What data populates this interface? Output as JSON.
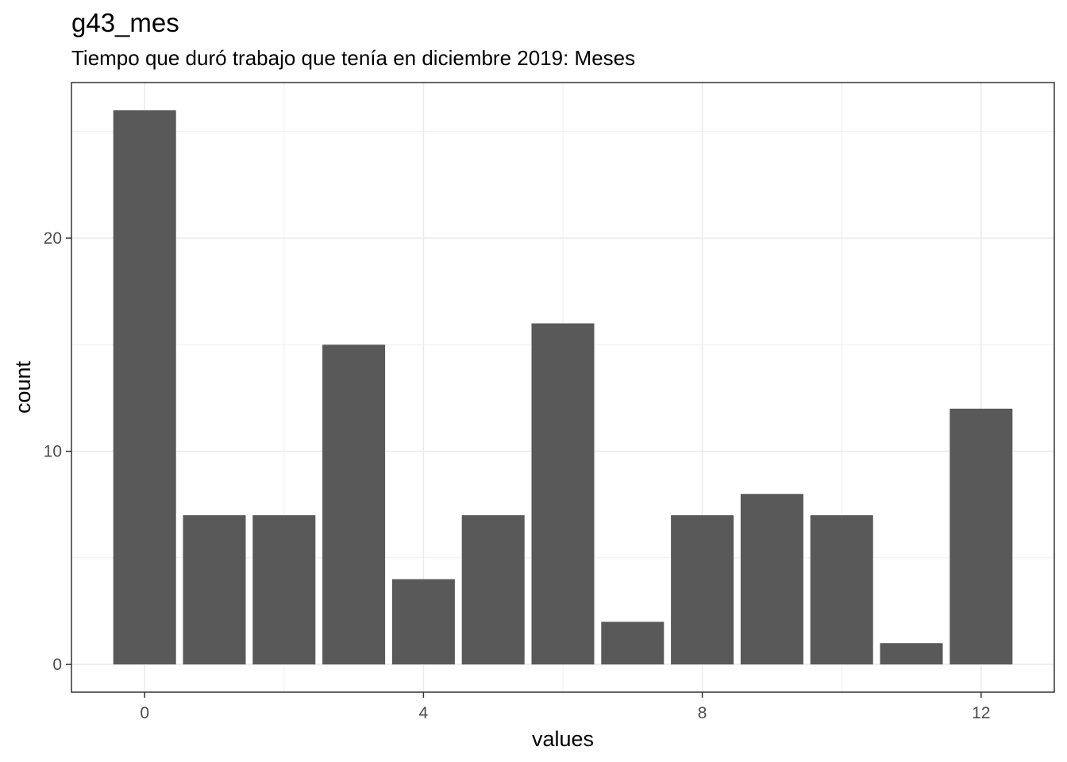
{
  "chart_data": {
    "type": "bar",
    "title": "g43_mes",
    "subtitle": "Tiempo que duró trabajo que tenía en diciembre 2019: Meses",
    "xlabel": "values",
    "ylabel": "count",
    "x": [
      0,
      1,
      2,
      3,
      4,
      5,
      6,
      7,
      8,
      9,
      10,
      11,
      12
    ],
    "values": [
      26,
      7,
      7,
      15,
      4,
      7,
      16,
      2,
      7,
      8,
      7,
      1,
      12
    ],
    "xlim": [
      -1.05,
      13.05
    ],
    "ylim": [
      -1.3,
      27.3
    ],
    "x_ticks": [
      0,
      4,
      8,
      12
    ],
    "y_ticks": [
      0,
      10,
      20
    ],
    "grid": true,
    "bar_color": "#595959",
    "grid_color": "#ebebeb",
    "panel_border_color": "#333333"
  }
}
